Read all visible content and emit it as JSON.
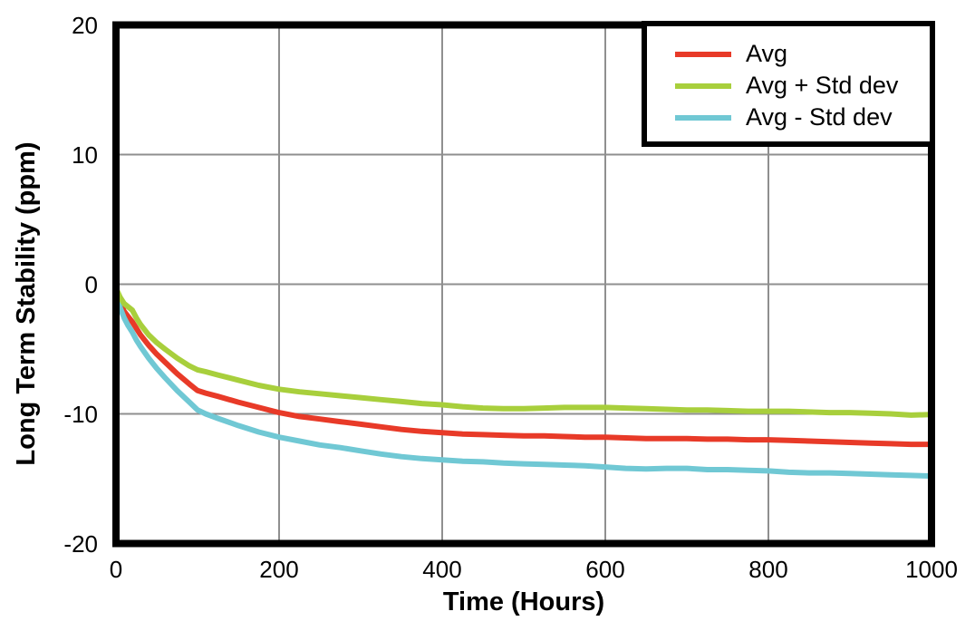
{
  "chart_data": {
    "type": "line",
    "title": "",
    "xlabel": "Time (Hours)",
    "ylabel": "Long Term Stability (ppm)",
    "xlim": [
      0,
      1000
    ],
    "ylim": [
      -20,
      20
    ],
    "x_ticks": [
      0,
      200,
      400,
      600,
      800,
      1000
    ],
    "y_ticks": [
      -20,
      -10,
      0,
      10,
      20
    ],
    "grid": true,
    "grid_color": "#8f8f8f",
    "axis_border_color": "#000000",
    "legend_position": "top-right",
    "x": [
      0,
      5,
      10,
      15,
      20,
      25,
      30,
      40,
      50,
      60,
      75,
      90,
      100,
      110,
      125,
      150,
      175,
      200,
      225,
      250,
      275,
      300,
      325,
      350,
      375,
      400,
      425,
      450,
      475,
      500,
      525,
      550,
      575,
      600,
      625,
      650,
      675,
      700,
      725,
      750,
      775,
      800,
      825,
      850,
      875,
      900,
      925,
      950,
      975,
      1000
    ],
    "series": [
      {
        "name": "Avg",
        "color": "#e83a28",
        "values": [
          -0.4,
          -1.4,
          -2.1,
          -2.5,
          -2.9,
          -3.4,
          -3.9,
          -4.7,
          -5.4,
          -6.0,
          -6.9,
          -7.7,
          -8.2,
          -8.4,
          -8.65,
          -9.1,
          -9.5,
          -9.9,
          -10.2,
          -10.4,
          -10.6,
          -10.8,
          -11.0,
          -11.2,
          -11.35,
          -11.45,
          -11.55,
          -11.6,
          -11.65,
          -11.7,
          -11.7,
          -11.75,
          -11.8,
          -11.8,
          -11.85,
          -11.9,
          -11.9,
          -11.9,
          -11.95,
          -11.95,
          -12.0,
          -12.0,
          -12.05,
          -12.1,
          -12.15,
          -12.2,
          -12.25,
          -12.3,
          -12.35,
          -12.35
        ]
      },
      {
        "name": "Avg + Std dev",
        "color": "#a8cf3c",
        "values": [
          -0.3,
          -1.0,
          -1.5,
          -1.75,
          -2.0,
          -2.6,
          -3.1,
          -3.9,
          -4.5,
          -5.0,
          -5.7,
          -6.3,
          -6.6,
          -6.75,
          -7.0,
          -7.4,
          -7.8,
          -8.1,
          -8.3,
          -8.45,
          -8.6,
          -8.75,
          -8.9,
          -9.05,
          -9.2,
          -9.3,
          -9.45,
          -9.55,
          -9.6,
          -9.6,
          -9.55,
          -9.5,
          -9.5,
          -9.5,
          -9.55,
          -9.6,
          -9.65,
          -9.7,
          -9.7,
          -9.75,
          -9.8,
          -9.8,
          -9.8,
          -9.85,
          -9.9,
          -9.9,
          -9.95,
          -10.0,
          -10.1,
          -10.05
        ]
      },
      {
        "name": "Avg - Std dev",
        "color": "#70c8d4",
        "values": [
          -0.5,
          -1.8,
          -2.6,
          -3.2,
          -3.7,
          -4.3,
          -4.8,
          -5.7,
          -6.5,
          -7.2,
          -8.2,
          -9.1,
          -9.7,
          -10.0,
          -10.35,
          -10.9,
          -11.4,
          -11.8,
          -12.1,
          -12.4,
          -12.6,
          -12.85,
          -13.1,
          -13.3,
          -13.45,
          -13.55,
          -13.65,
          -13.7,
          -13.8,
          -13.85,
          -13.9,
          -13.95,
          -14.0,
          -14.1,
          -14.2,
          -14.25,
          -14.2,
          -14.2,
          -14.3,
          -14.3,
          -14.35,
          -14.4,
          -14.5,
          -14.55,
          -14.55,
          -14.6,
          -14.65,
          -14.7,
          -14.75,
          -14.8
        ]
      }
    ]
  }
}
